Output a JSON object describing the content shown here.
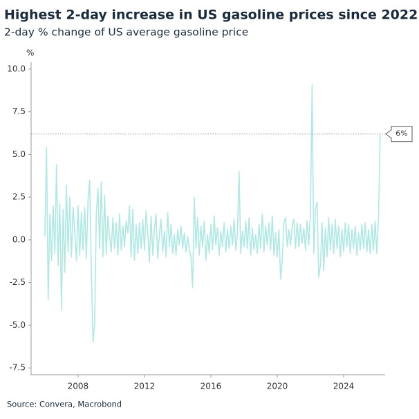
{
  "chart_data": {
    "type": "line",
    "title": "Highest 2-day increase in US gasoline prices since 2022",
    "subtitle": "2-day % change of US average gasoline price",
    "y_unit": "%",
    "source": "Source: Convera, Macrobond",
    "annotation": {
      "label": "6%",
      "value": 6.2
    },
    "xlim": [
      2005.17,
      2026.5
    ],
    "xticks": [
      2008,
      2012,
      2016,
      2020,
      2024
    ],
    "ylim": [
      -7.9,
      10.4
    ],
    "yticks": [
      {
        "value": 10,
        "label": "10.0"
      },
      7.5,
      {
        "value": 5,
        "label": "5.0"
      },
      2.5,
      {
        "value": 0,
        "label": "0.0"
      },
      -2.5,
      {
        "value": -5,
        "label": "-5.0"
      },
      -7.5
    ],
    "series": [
      {
        "name": "2-day % change",
        "color": "#aee9e3",
        "x": [
          2006.0,
          2006.1,
          2006.2,
          2006.3,
          2006.4,
          2006.5,
          2006.6,
          2006.7,
          2006.8,
          2006.9,
          2007.0,
          2007.1,
          2007.2,
          2007.3,
          2007.4,
          2007.5,
          2007.6,
          2007.7,
          2007.8,
          2007.9,
          2008.0,
          2008.1,
          2008.2,
          2008.3,
          2008.4,
          2008.5,
          2008.6,
          2008.7,
          2008.8,
          2008.9,
          2009.0,
          2009.1,
          2009.2,
          2009.3,
          2009.4,
          2009.5,
          2009.6,
          2009.7,
          2009.8,
          2009.9,
          2010.0,
          2010.1,
          2010.2,
          2010.3,
          2010.4,
          2010.5,
          2010.6,
          2010.7,
          2010.8,
          2010.9,
          2011.0,
          2011.1,
          2011.2,
          2011.3,
          2011.4,
          2011.5,
          2011.6,
          2011.7,
          2011.8,
          2011.9,
          2012.0,
          2012.1,
          2012.2,
          2012.3,
          2012.4,
          2012.5,
          2012.6,
          2012.7,
          2012.8,
          2012.9,
          2013.0,
          2013.1,
          2013.2,
          2013.3,
          2013.4,
          2013.5,
          2013.6,
          2013.7,
          2013.8,
          2013.9,
          2014.0,
          2014.1,
          2014.2,
          2014.3,
          2014.4,
          2014.5,
          2014.6,
          2014.7,
          2014.8,
          2014.9,
          2015.0,
          2015.1,
          2015.2,
          2015.3,
          2015.4,
          2015.5,
          2015.6,
          2015.7,
          2015.8,
          2015.9,
          2016.0,
          2016.1,
          2016.2,
          2016.3,
          2016.4,
          2016.5,
          2016.6,
          2016.7,
          2016.8,
          2016.9,
          2017.0,
          2017.1,
          2017.2,
          2017.3,
          2017.4,
          2017.5,
          2017.6,
          2017.7,
          2017.8,
          2017.9,
          2018.0,
          2018.1,
          2018.2,
          2018.3,
          2018.4,
          2018.5,
          2018.6,
          2018.7,
          2018.8,
          2018.9,
          2019.0,
          2019.1,
          2019.2,
          2019.3,
          2019.4,
          2019.5,
          2019.6,
          2019.7,
          2019.8,
          2019.9,
          2020.0,
          2020.1,
          2020.2,
          2020.3,
          2020.4,
          2020.5,
          2020.6,
          2020.7,
          2020.8,
          2020.9,
          2021.0,
          2021.1,
          2021.2,
          2021.3,
          2021.4,
          2021.5,
          2021.6,
          2021.7,
          2021.8,
          2021.9,
          2022.0,
          2022.1,
          2022.2,
          2022.3,
          2022.4,
          2022.5,
          2022.6,
          2022.7,
          2022.8,
          2022.9,
          2023.0,
          2023.1,
          2023.2,
          2023.3,
          2023.4,
          2023.5,
          2023.6,
          2023.7,
          2023.8,
          2023.9,
          2024.0,
          2024.1,
          2024.2,
          2024.3,
          2024.4,
          2024.5,
          2024.6,
          2024.7,
          2024.8,
          2024.9,
          2025.0,
          2025.1,
          2025.2,
          2025.3,
          2025.4,
          2025.5,
          2025.6,
          2025.7,
          2025.8,
          2025.9,
          2026.0,
          2026.1,
          2026.2
        ],
        "values": [
          0.2,
          5.4,
          -3.5,
          1.5,
          -1.2,
          2.0,
          -0.8,
          4.4,
          -1.5,
          2.1,
          -4.1,
          1.8,
          -1.9,
          3.2,
          -0.7,
          2.5,
          -1.0,
          1.9,
          0.5,
          -1.2,
          2.0,
          -0.9,
          1.6,
          -0.6,
          1.9,
          -1.1,
          2.3,
          3.5,
          -1.8,
          -6.0,
          -4.9,
          1.5,
          3.0,
          -0.5,
          3.4,
          -1.0,
          2.6,
          -0.8,
          1.4,
          0.2,
          -0.7,
          1.3,
          -0.5,
          1.0,
          -0.9,
          1.5,
          -0.6,
          0.8,
          -0.4,
          1.1,
          0.4,
          2.0,
          -1.0,
          1.8,
          -1.2,
          0.9,
          -0.8,
          1.0,
          -0.5,
          1.2,
          -0.6,
          1.7,
          0.4,
          -1.3,
          1.4,
          -0.9,
          0.6,
          1.5,
          -1.1,
          0.3,
          1.2,
          -0.7,
          0.5,
          -1.0,
          1.6,
          -0.4,
          0.9,
          -0.8,
          0.3,
          -0.9,
          0.6,
          -0.3,
          0.8,
          -0.5,
          0.4,
          -0.7,
          0.2,
          -0.6,
          -1.0,
          -2.8,
          2.5,
          -0.5,
          1.3,
          -0.9,
          0.8,
          -0.4,
          1.1,
          -1.2,
          0.3,
          -0.8,
          0.9,
          -0.6,
          1.4,
          -0.3,
          0.7,
          -0.9,
          0.5,
          -0.4,
          1.0,
          -0.7,
          0.6,
          -0.5,
          0.8,
          -0.3,
          1.2,
          -0.6,
          0.4,
          4.0,
          -0.8,
          0.5,
          -0.4,
          1.1,
          -0.5,
          1.3,
          -0.9,
          0.7,
          -0.6,
          0.3,
          -0.8,
          0.9,
          -0.5,
          1.5,
          -0.7,
          0.8,
          -0.3,
          1.0,
          -0.6,
          1.4,
          -0.9,
          0.4,
          -1.0,
          0.6,
          -2.3,
          -1.2,
          1.0,
          1.3,
          -0.4,
          0.6,
          -0.3,
          0.8,
          1.2,
          -0.5,
          1.0,
          -0.4,
          0.9,
          -0.2,
          0.7,
          -0.6,
          1.1,
          -0.3,
          1.5,
          9.1,
          -0.8,
          1.8,
          2.2,
          -2.2,
          -1.5,
          1.0,
          -1.8,
          0.7,
          -1.0,
          1.3,
          -0.6,
          0.9,
          -0.8,
          1.2,
          -0.5,
          0.8,
          -1.0,
          0.6,
          -0.7,
          1.0,
          -0.4,
          0.9,
          -0.8,
          0.6,
          -0.5,
          0.8,
          -0.9,
          0.4,
          -0.6,
          0.9,
          -0.5,
          1.0,
          -0.7,
          0.6,
          -0.8,
          0.9,
          -0.6,
          1.1,
          -0.8,
          1.2,
          6.2
        ]
      }
    ]
  }
}
